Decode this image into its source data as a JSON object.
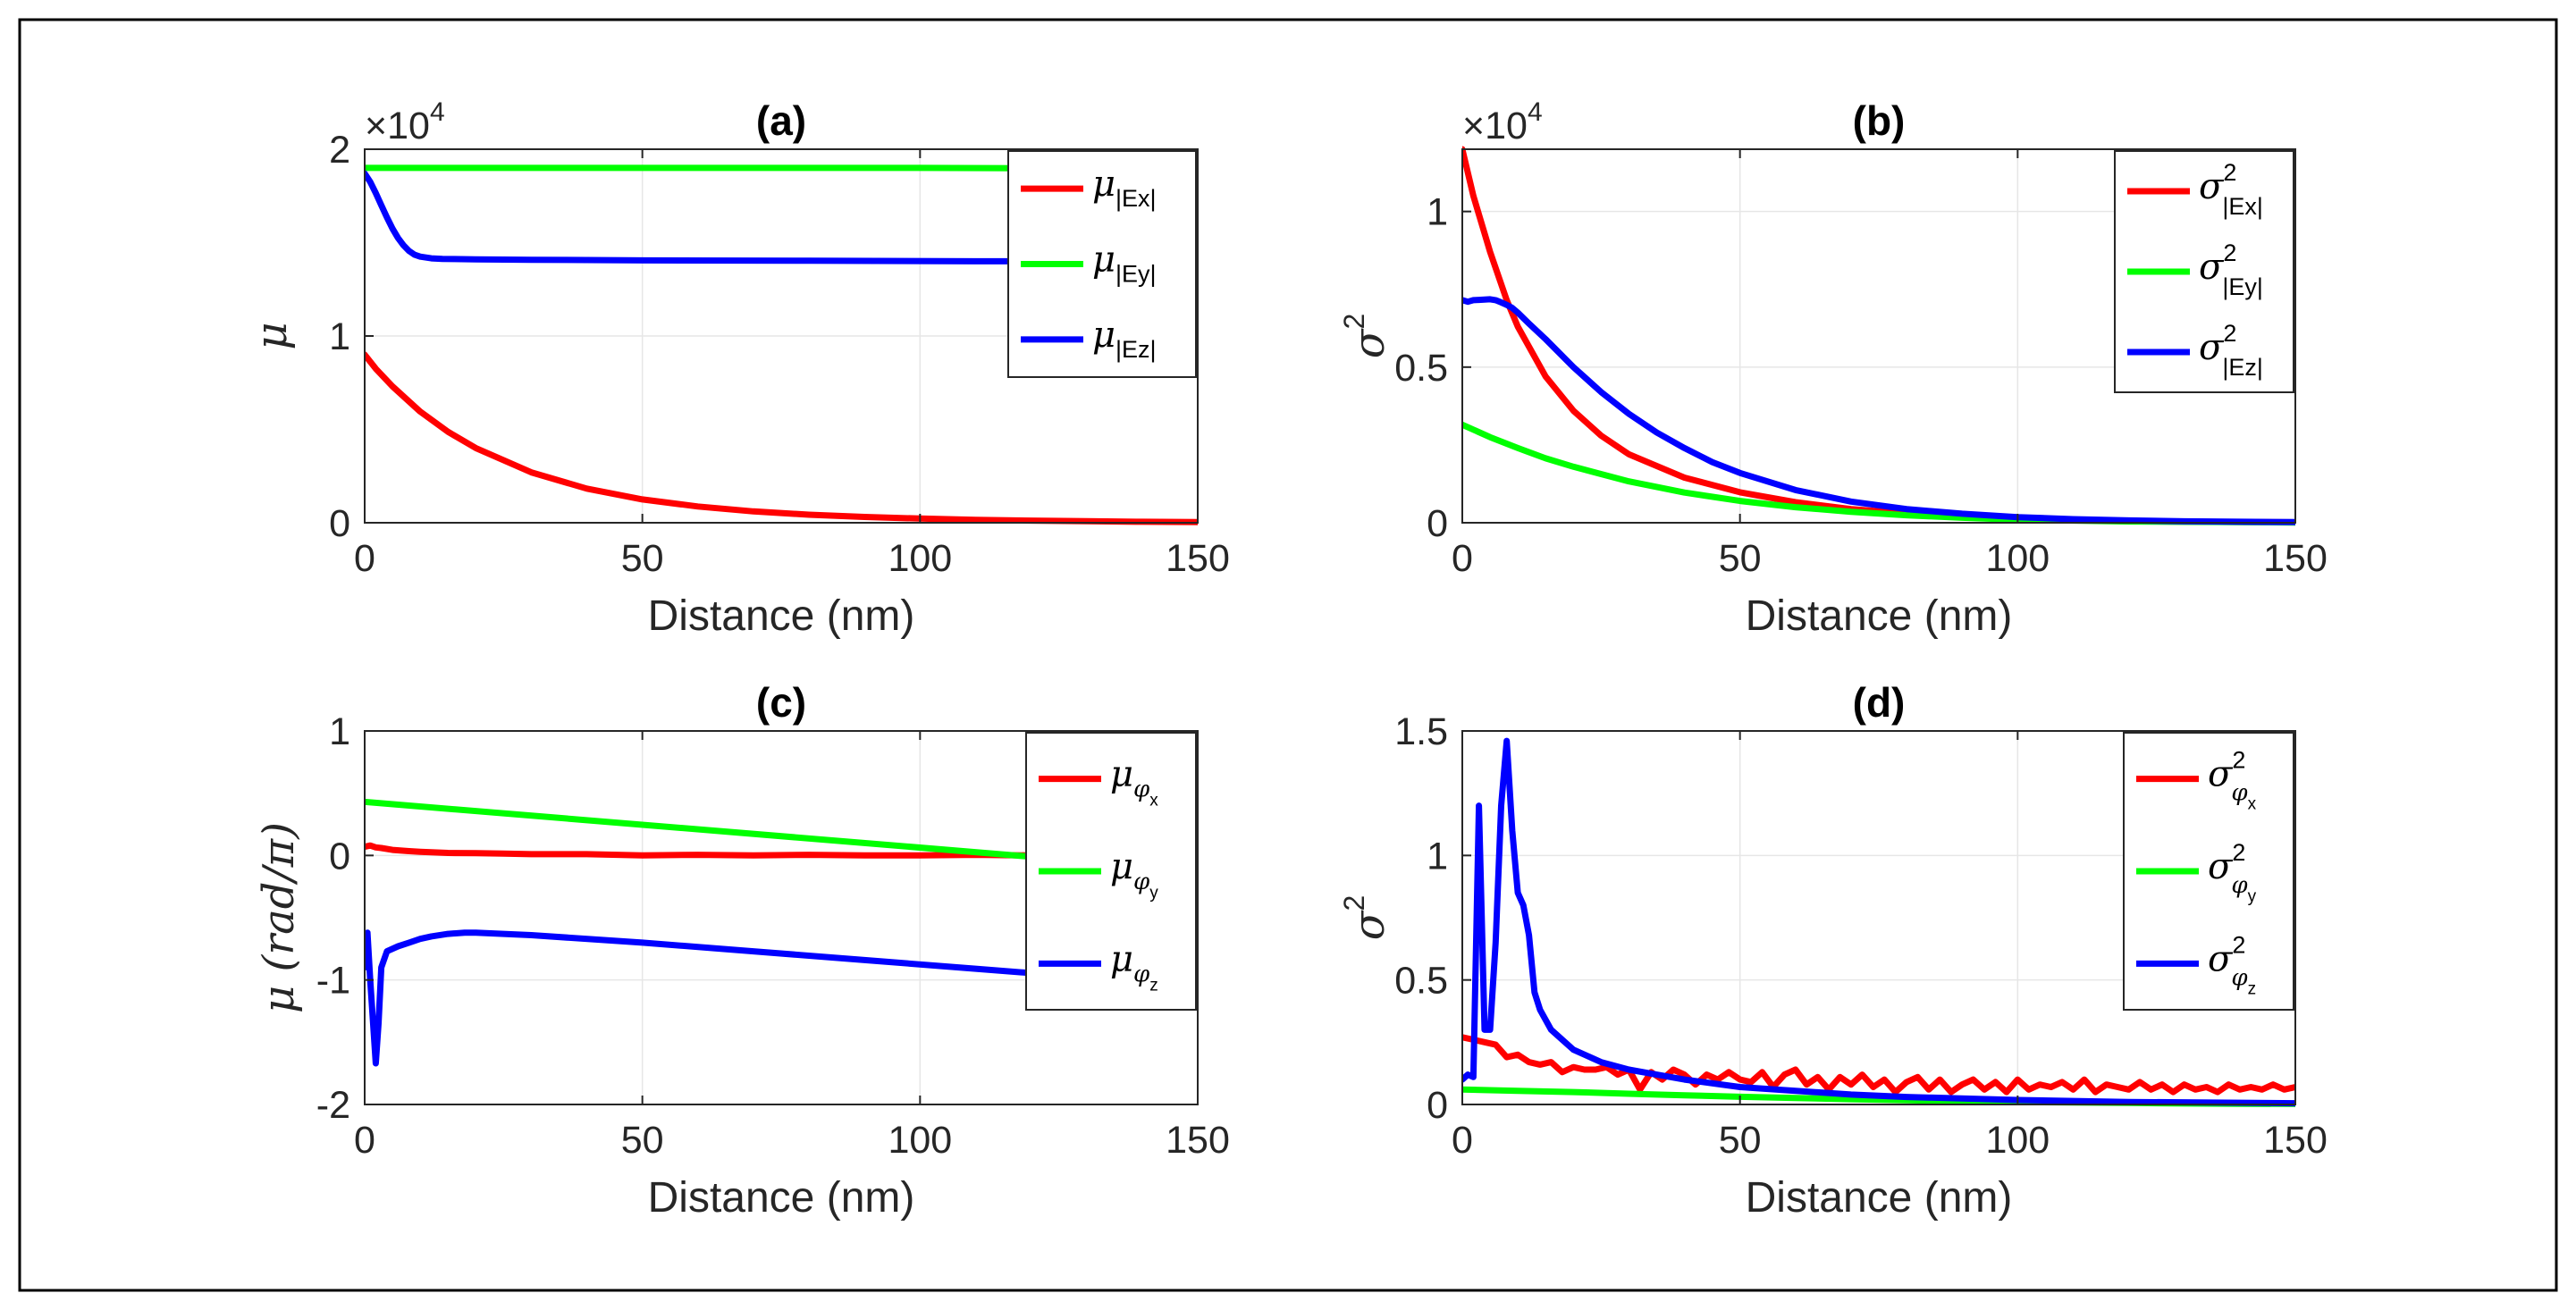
{
  "colors": {
    "red": "#ff0000",
    "green": "#00ff00",
    "blue": "#0000ff"
  },
  "chart_data": [
    {
      "id": "a",
      "type": "line",
      "title": "(a)",
      "xlabel": "Distance (nm)",
      "ylabel": "μ",
      "xlim": [
        0,
        150
      ],
      "ylim": [
        0,
        20000
      ],
      "xticks": [
        0,
        50,
        100,
        150
      ],
      "yticks": [
        0,
        10000,
        20000
      ],
      "ytick_labels": [
        "0",
        "1",
        "2"
      ],
      "exponent_label": "×10",
      "exponent_power": "4",
      "grid": true,
      "legend_position": "top-right",
      "series": [
        {
          "name": "μ|Ex|",
          "sym": "μ",
          "sub": "|Ex|",
          "color": "#ff0000",
          "x": [
            0,
            2,
            5,
            10,
            15,
            20,
            30,
            40,
            50,
            60,
            70,
            80,
            90,
            100,
            110,
            120,
            130,
            140,
            150
          ],
          "y": [
            9000,
            8250,
            7300,
            5950,
            4870,
            4000,
            2700,
            1830,
            1250,
            870,
            610,
            430,
            310,
            225,
            160,
            115,
            80,
            55,
            40
          ]
        },
        {
          "name": "μ|Ey|",
          "sym": "μ",
          "sub": "|Ey|",
          "color": "#00ff00",
          "x": [
            0,
            50,
            100,
            150
          ],
          "y": [
            19000,
            19000,
            19000,
            18950
          ]
        },
        {
          "name": "μ|Ez|",
          "sym": "μ",
          "sub": "|Ez|",
          "color": "#0000ff",
          "x": [
            0,
            1,
            2,
            3,
            4,
            5,
            6,
            7,
            8,
            9,
            10,
            12,
            14,
            16,
            20,
            30,
            50,
            80,
            110,
            150
          ],
          "y": [
            18700,
            18250,
            17650,
            17000,
            16350,
            15750,
            15250,
            14850,
            14550,
            14350,
            14250,
            14160,
            14130,
            14120,
            14100,
            14080,
            14050,
            14030,
            14000,
            14000
          ]
        }
      ]
    },
    {
      "id": "b",
      "type": "line",
      "title": "(b)",
      "xlabel": "Distance (nm)",
      "ylabel": "σ",
      "ylabel_sup": "2",
      "xlim": [
        0,
        150
      ],
      "ylim": [
        0,
        12000
      ],
      "xticks": [
        0,
        50,
        100,
        150
      ],
      "yticks": [
        0,
        5000,
        10000
      ],
      "ytick_labels": [
        "0",
        "0.5",
        "1"
      ],
      "exponent_label": "×10",
      "exponent_power": "4",
      "grid": true,
      "legend_position": "top-right",
      "series": [
        {
          "name": "σ2|Ex|",
          "sym": "σ",
          "sup": "2",
          "sub": "|Ex|",
          "color": "#ff0000",
          "x": [
            0,
            2,
            5,
            8,
            10,
            15,
            20,
            25,
            30,
            40,
            50,
            60,
            70,
            80,
            90,
            100,
            110,
            120,
            130,
            150
          ],
          "y": [
            12000,
            10500,
            8700,
            7150,
            6300,
            4700,
            3600,
            2800,
            2200,
            1450,
            980,
            660,
            440,
            300,
            200,
            130,
            85,
            55,
            35,
            15
          ]
        },
        {
          "name": "σ2|Ey|",
          "sym": "σ",
          "sup": "2",
          "sub": "|Ey|",
          "color": "#00ff00",
          "x": [
            0,
            5,
            10,
            15,
            20,
            30,
            40,
            50,
            60,
            70,
            80,
            90,
            100,
            120,
            150
          ],
          "y": [
            3150,
            2750,
            2400,
            2070,
            1800,
            1330,
            970,
            700,
            500,
            350,
            240,
            160,
            100,
            40,
            10
          ]
        },
        {
          "name": "σ2|Ez|",
          "sym": "σ",
          "sup": "2",
          "sub": "|Ez|",
          "color": "#0000ff",
          "x": [
            0,
            1,
            2,
            3,
            4,
            5,
            6,
            7,
            8,
            9,
            10,
            12,
            15,
            20,
            25,
            30,
            35,
            40,
            45,
            50,
            60,
            70,
            80,
            90,
            100,
            110,
            120,
            130,
            150
          ],
          "y": [
            7150,
            7100,
            7150,
            7160,
            7170,
            7180,
            7150,
            7080,
            7000,
            6900,
            6750,
            6400,
            5900,
            5000,
            4200,
            3500,
            2900,
            2400,
            1950,
            1600,
            1050,
            680,
            440,
            290,
            180,
            115,
            75,
            45,
            20
          ]
        }
      ]
    },
    {
      "id": "c",
      "type": "line",
      "title": "(c)",
      "xlabel": "Distance (nm)",
      "ylabel": "μ (rad/π)",
      "xlim": [
        0,
        150
      ],
      "ylim": [
        -2,
        1
      ],
      "xticks": [
        0,
        50,
        100,
        150
      ],
      "yticks": [
        -2,
        -1,
        0,
        1
      ],
      "ytick_labels": [
        "-2",
        "-1",
        "0",
        "1"
      ],
      "grid": true,
      "legend_position": "top-right",
      "series": [
        {
          "name": "μφx",
          "sym": "μ",
          "subsym": "φ",
          "subsub": "x",
          "color": "#ff0000",
          "x": [
            0,
            1,
            2,
            3,
            5,
            8,
            10,
            15,
            20,
            25,
            30,
            40,
            50,
            60,
            70,
            80,
            90,
            100,
            110,
            120,
            130,
            140,
            150
          ],
          "y": [
            0.07,
            0.08,
            0.065,
            0.06,
            0.045,
            0.035,
            0.03,
            0.02,
            0.018,
            0.015,
            0.01,
            0.01,
            0.0,
            0.005,
            0.0,
            0.005,
            0.0,
            0.0,
            0.005,
            0.0,
            0.005,
            0.005,
            0.0
          ]
        },
        {
          "name": "μφy",
          "sym": "μ",
          "subsym": "φ",
          "subsub": "y",
          "color": "#00ff00",
          "x": [
            0,
            150
          ],
          "y": [
            0.43,
            -0.12
          ]
        },
        {
          "name": "μφz",
          "sym": "μ",
          "subsym": "φ",
          "subsub": "z",
          "color": "#0000ff",
          "x": [
            0,
            0.5,
            1,
            2,
            2.5,
            3,
            4,
            6,
            8,
            10,
            12,
            15,
            18,
            20,
            30,
            50,
            70,
            90,
            110,
            130,
            150
          ],
          "y": [
            -0.9,
            -0.62,
            -1.0,
            -1.67,
            -1.35,
            -0.9,
            -0.77,
            -0.73,
            -0.7,
            -0.67,
            -0.65,
            -0.63,
            -0.62,
            -0.62,
            -0.64,
            -0.7,
            -0.77,
            -0.84,
            -0.91,
            -0.98,
            -1.06
          ]
        }
      ]
    },
    {
      "id": "d",
      "type": "line",
      "title": "(d)",
      "xlabel": "Distance (nm)",
      "ylabel": "σ",
      "ylabel_sup": "2",
      "xlim": [
        0,
        150
      ],
      "ylim": [
        0,
        1.5
      ],
      "xticks": [
        0,
        50,
        100,
        150
      ],
      "yticks": [
        0,
        0.5,
        1,
        1.5
      ],
      "ytick_labels": [
        "0",
        "0.5",
        "1",
        "1.5"
      ],
      "grid": true,
      "legend_position": "top-right",
      "series": [
        {
          "name": "σ2φx",
          "sym": "σ",
          "sup": "2",
          "subsym": "φ",
          "subsub": "x",
          "color": "#ff0000",
          "x": [
            0,
            2,
            4,
            6,
            8,
            10,
            12,
            14,
            16,
            18,
            20,
            22,
            24,
            26,
            28,
            30,
            32,
            34,
            36,
            38,
            40,
            42,
            44,
            46,
            48,
            50,
            52,
            54,
            56,
            58,
            60,
            62,
            64,
            66,
            68,
            70,
            72,
            74,
            76,
            78,
            80,
            82,
            84,
            86,
            88,
            90,
            92,
            94,
            96,
            98,
            100,
            102,
            104,
            106,
            108,
            110,
            112,
            114,
            116,
            118,
            120,
            122,
            124,
            126,
            128,
            130,
            132,
            134,
            136,
            138,
            140,
            142,
            144,
            146,
            148,
            150
          ],
          "y": [
            0.27,
            0.26,
            0.25,
            0.24,
            0.19,
            0.2,
            0.17,
            0.16,
            0.17,
            0.13,
            0.15,
            0.14,
            0.14,
            0.15,
            0.12,
            0.14,
            0.06,
            0.13,
            0.1,
            0.14,
            0.12,
            0.08,
            0.12,
            0.1,
            0.13,
            0.1,
            0.09,
            0.13,
            0.07,
            0.12,
            0.14,
            0.08,
            0.11,
            0.06,
            0.11,
            0.08,
            0.12,
            0.07,
            0.1,
            0.05,
            0.09,
            0.11,
            0.06,
            0.1,
            0.05,
            0.08,
            0.1,
            0.06,
            0.09,
            0.05,
            0.1,
            0.06,
            0.08,
            0.07,
            0.09,
            0.06,
            0.1,
            0.05,
            0.08,
            0.07,
            0.06,
            0.09,
            0.06,
            0.08,
            0.05,
            0.08,
            0.06,
            0.07,
            0.05,
            0.08,
            0.06,
            0.07,
            0.06,
            0.08,
            0.06,
            0.07
          ]
        },
        {
          "name": "σ2φy",
          "sym": "σ",
          "sup": "2",
          "subsym": "φ",
          "subsub": "y",
          "color": "#00ff00",
          "x": [
            0,
            10,
            20,
            30,
            40,
            50,
            60,
            70,
            80,
            90,
            100,
            110,
            120,
            130,
            140,
            150
          ],
          "y": [
            0.06,
            0.055,
            0.05,
            0.043,
            0.037,
            0.031,
            0.026,
            0.021,
            0.017,
            0.013,
            0.01,
            0.008,
            0.006,
            0.004,
            0.003,
            0.002
          ]
        },
        {
          "name": "σ2φz",
          "sym": "σ",
          "sup": "2",
          "subsym": "φ",
          "subsub": "z",
          "color": "#0000ff",
          "x": [
            0,
            1,
            2,
            3,
            4,
            5,
            6,
            7,
            8,
            9,
            10,
            11,
            12,
            13,
            14,
            16,
            18,
            20,
            25,
            30,
            35,
            40,
            50,
            60,
            70,
            80,
            100,
            120,
            150
          ],
          "y": [
            0.1,
            0.12,
            0.11,
            1.2,
            0.3,
            0.3,
            0.65,
            1.2,
            1.46,
            1.1,
            0.85,
            0.8,
            0.68,
            0.45,
            0.38,
            0.3,
            0.26,
            0.22,
            0.17,
            0.14,
            0.12,
            0.1,
            0.07,
            0.055,
            0.04,
            0.03,
            0.018,
            0.01,
            0.005
          ]
        }
      ]
    }
  ]
}
